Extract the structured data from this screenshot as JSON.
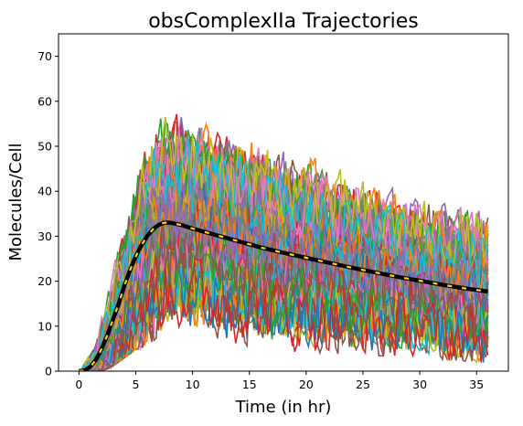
{
  "chart_data": {
    "type": "line",
    "title": "obsComplexIIa Trajectories",
    "xlabel": "Time (in hr)",
    "ylabel": "Molecules/Cell",
    "xlim": [
      -1.8,
      37.8
    ],
    "ylim": [
      0,
      75
    ],
    "xticks": [
      0,
      5,
      10,
      15,
      20,
      25,
      30,
      35
    ],
    "yticks": [
      0,
      10,
      20,
      30,
      40,
      50,
      60,
      70
    ],
    "grid": false,
    "legend": "none",
    "trajectory_count": 100,
    "trajectory_colors": [
      "#1f77b4",
      "#ff7f0e",
      "#2ca02c",
      "#d62728",
      "#9467bd",
      "#8c564b",
      "#e377c2",
      "#7f7f7f",
      "#bcbd22",
      "#17becf"
    ],
    "trajectory_envelope": {
      "x": [
        0,
        1,
        2,
        3,
        4,
        5,
        6,
        7,
        8,
        10,
        12,
        15,
        20,
        25,
        30,
        36
      ],
      "lower": [
        0,
        0,
        0,
        2,
        5,
        8,
        9,
        10,
        10,
        10,
        9,
        8,
        7,
        6,
        5,
        3
      ],
      "upper": [
        0,
        8,
        18,
        30,
        40,
        50,
        57,
        60,
        62,
        60,
        58,
        56,
        52,
        47,
        42,
        40
      ]
    },
    "series": [
      {
        "style": "mean",
        "color": "#000000",
        "dash_color": "#ffd700",
        "x": [
          0,
          0.5,
          1,
          1.5,
          2,
          2.5,
          3,
          3.5,
          4,
          4.5,
          5,
          5.5,
          6,
          6.5,
          7,
          7.5,
          8,
          9,
          10,
          12,
          14,
          16,
          18,
          20,
          22,
          24,
          26,
          28,
          30,
          32,
          34,
          36
        ],
        "y": [
          0,
          0.2,
          1.0,
          2.5,
          5.0,
          8.0,
          11.5,
          15.0,
          19.0,
          22.5,
          25.5,
          28.0,
          30.0,
          31.5,
          32.5,
          33.0,
          33.0,
          32.5,
          31.7,
          30.3,
          28.9,
          27.5,
          26.3,
          25.2,
          24.1,
          23.0,
          22.0,
          21.0,
          20.1,
          19.2,
          18.4,
          17.7
        ]
      }
    ]
  }
}
